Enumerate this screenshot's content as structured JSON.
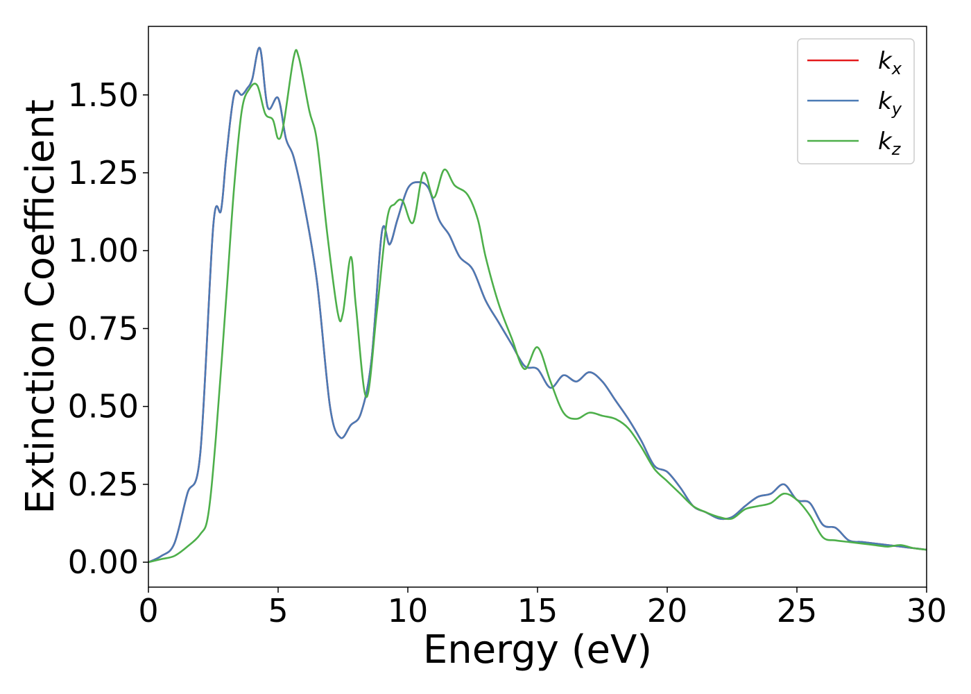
{
  "chart_data": {
    "type": "line",
    "xlabel": "Energy (eV)",
    "ylabel": "Extinction Coefficient",
    "xlim": [
      0,
      30
    ],
    "ylim": [
      -0.08,
      1.72
    ],
    "xticks": [
      0,
      5,
      10,
      15,
      20,
      25,
      30
    ],
    "yticks": [
      0.0,
      0.25,
      0.5,
      0.75,
      1.0,
      1.25,
      1.5
    ],
    "xtick_labels": [
      "0",
      "5",
      "10",
      "15",
      "20",
      "25",
      "30"
    ],
    "ytick_labels": [
      "0.00",
      "0.25",
      "0.50",
      "0.75",
      "1.00",
      "1.25",
      "1.50"
    ],
    "grid": false,
    "legend_position": "top-right",
    "series": [
      {
        "name": "k_x",
        "label_main": "k",
        "label_sub": "x",
        "color": "#e41a1c",
        "x": [
          0,
          0.5,
          1.0,
          1.5,
          2.0,
          2.5,
          2.8,
          3.0,
          3.3,
          3.6,
          3.8,
          4.0,
          4.3,
          4.6,
          5.0,
          5.3,
          5.6,
          6.0,
          6.5,
          7.0,
          7.4,
          7.8,
          8.2,
          8.6,
          9.0,
          9.3,
          9.6,
          10.0,
          10.4,
          10.8,
          11.2,
          11.6,
          12.0,
          12.5,
          13.0,
          13.5,
          14.0,
          14.5,
          15.0,
          15.5,
          16.0,
          16.5,
          17.0,
          17.5,
          18.0,
          18.5,
          19.0,
          19.5,
          20.0,
          20.5,
          21.0,
          21.5,
          22.0,
          22.5,
          23.0,
          23.5,
          24.0,
          24.5,
          25.0,
          25.5,
          26.0,
          26.5,
          27.0,
          27.5,
          28.0,
          28.5,
          29.0,
          29.5,
          30.0
        ],
        "y": [
          0.0,
          0.02,
          0.06,
          0.22,
          0.35,
          1.08,
          1.13,
          1.3,
          1.5,
          1.5,
          1.52,
          1.55,
          1.65,
          1.46,
          1.49,
          1.36,
          1.3,
          1.15,
          0.9,
          0.5,
          0.4,
          0.44,
          0.48,
          0.65,
          1.06,
          1.02,
          1.1,
          1.2,
          1.22,
          1.2,
          1.1,
          1.05,
          0.98,
          0.94,
          0.84,
          0.77,
          0.7,
          0.63,
          0.62,
          0.56,
          0.6,
          0.58,
          0.61,
          0.58,
          0.52,
          0.46,
          0.39,
          0.31,
          0.29,
          0.24,
          0.18,
          0.16,
          0.14,
          0.145,
          0.18,
          0.21,
          0.22,
          0.25,
          0.2,
          0.19,
          0.12,
          0.11,
          0.07,
          0.065,
          0.06,
          0.055,
          0.05,
          0.045,
          0.04
        ]
      },
      {
        "name": "k_y",
        "label_main": "k",
        "label_sub": "y",
        "color": "#4a7ab5",
        "x": [
          0,
          0.5,
          1.0,
          1.5,
          2.0,
          2.5,
          2.8,
          3.0,
          3.3,
          3.6,
          3.8,
          4.0,
          4.3,
          4.6,
          5.0,
          5.3,
          5.6,
          6.0,
          6.5,
          7.0,
          7.4,
          7.8,
          8.2,
          8.6,
          9.0,
          9.3,
          9.6,
          10.0,
          10.4,
          10.8,
          11.2,
          11.6,
          12.0,
          12.5,
          13.0,
          13.5,
          14.0,
          14.5,
          15.0,
          15.5,
          16.0,
          16.5,
          17.0,
          17.5,
          18.0,
          18.5,
          19.0,
          19.5,
          20.0,
          20.5,
          21.0,
          21.5,
          22.0,
          22.5,
          23.0,
          23.5,
          24.0,
          24.5,
          25.0,
          25.5,
          26.0,
          26.5,
          27.0,
          27.5,
          28.0,
          28.5,
          29.0,
          29.5,
          30.0
        ],
        "y": [
          0.0,
          0.02,
          0.06,
          0.22,
          0.35,
          1.08,
          1.13,
          1.3,
          1.5,
          1.5,
          1.52,
          1.55,
          1.65,
          1.46,
          1.49,
          1.36,
          1.3,
          1.15,
          0.9,
          0.5,
          0.4,
          0.44,
          0.48,
          0.65,
          1.06,
          1.02,
          1.1,
          1.2,
          1.22,
          1.2,
          1.1,
          1.05,
          0.98,
          0.94,
          0.84,
          0.77,
          0.7,
          0.63,
          0.62,
          0.56,
          0.6,
          0.58,
          0.61,
          0.58,
          0.52,
          0.46,
          0.39,
          0.31,
          0.29,
          0.24,
          0.18,
          0.16,
          0.14,
          0.145,
          0.18,
          0.21,
          0.22,
          0.25,
          0.2,
          0.19,
          0.12,
          0.11,
          0.07,
          0.065,
          0.06,
          0.055,
          0.05,
          0.045,
          0.04
        ]
      },
      {
        "name": "k_z",
        "label_main": "k",
        "label_sub": "z",
        "color": "#4daf4a",
        "x": [
          0,
          0.5,
          1.0,
          1.5,
          2.0,
          2.3,
          2.6,
          3.0,
          3.3,
          3.6,
          3.9,
          4.2,
          4.5,
          4.8,
          5.0,
          5.2,
          5.6,
          5.8,
          6.2,
          6.5,
          6.9,
          7.3,
          7.5,
          7.8,
          8.0,
          8.4,
          8.8,
          9.2,
          9.5,
          9.8,
          10.2,
          10.6,
          11.0,
          11.4,
          11.8,
          12.3,
          12.7,
          13.0,
          13.5,
          14.0,
          14.5,
          15.0,
          15.5,
          16.0,
          16.5,
          17.0,
          17.5,
          18.0,
          18.5,
          19.0,
          19.5,
          20.0,
          20.5,
          21.0,
          21.5,
          22.0,
          22.5,
          23.0,
          23.5,
          24.0,
          24.5,
          25.0,
          25.5,
          26.0,
          26.5,
          27.0,
          27.5,
          28.0,
          28.5,
          29.0,
          29.5,
          30.0
        ],
        "y": [
          0.0,
          0.01,
          0.02,
          0.05,
          0.09,
          0.15,
          0.4,
          0.85,
          1.2,
          1.45,
          1.52,
          1.53,
          1.44,
          1.42,
          1.36,
          1.4,
          1.62,
          1.62,
          1.45,
          1.35,
          1.05,
          0.8,
          0.8,
          0.98,
          0.82,
          0.53,
          0.8,
          1.1,
          1.15,
          1.16,
          1.09,
          1.25,
          1.17,
          1.26,
          1.21,
          1.18,
          1.1,
          0.98,
          0.83,
          0.72,
          0.62,
          0.69,
          0.58,
          0.48,
          0.46,
          0.48,
          0.47,
          0.46,
          0.43,
          0.37,
          0.3,
          0.26,
          0.22,
          0.18,
          0.16,
          0.145,
          0.14,
          0.17,
          0.18,
          0.19,
          0.22,
          0.2,
          0.15,
          0.08,
          0.07,
          0.065,
          0.06,
          0.055,
          0.05,
          0.055,
          0.045,
          0.04
        ]
      }
    ]
  }
}
